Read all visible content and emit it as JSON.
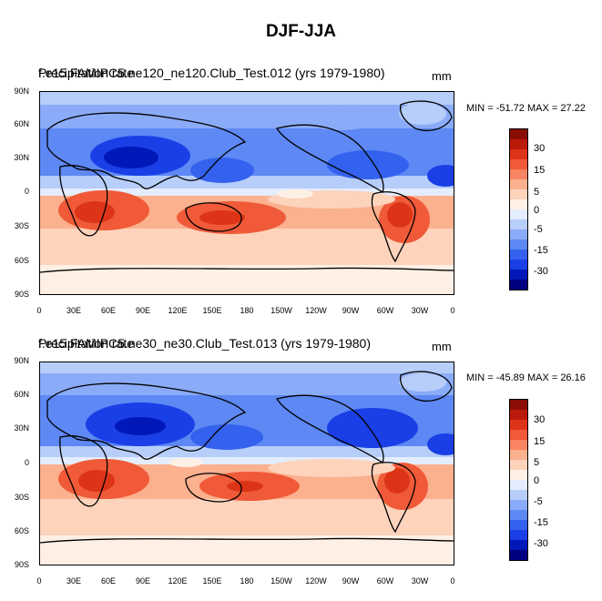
{
  "title": "DJF-JJA",
  "colors": {
    "scale": [
      "#000080",
      "#0018b8",
      "#1a3fe6",
      "#3462ee",
      "#5e88f4",
      "#8aabf7",
      "#b7cdfa",
      "#e4edfd",
      "#fff0e6",
      "#fdd3bc",
      "#fbb08e",
      "#f88462",
      "#f05a38",
      "#dd3418",
      "#bb1a0a",
      "#8a0d05"
    ]
  },
  "panels": [
    {
      "label_a": "Precipitation rate",
      "label_b": "f.e15.FAMIPC5.ne120_ne120.Club_Test.012 (yrs 1979-1980)",
      "units": "mm",
      "minmax": "MIN = -51.72 MAX =  27.22"
    },
    {
      "label_a": "Precipitation rate",
      "label_b": "f.e15.FAMIPC5.ne30_ne30.Club_Test.013 (yrs 1979-1980)",
      "units": "mm",
      "minmax": "MIN = -45.89 MAX =  26.16"
    }
  ],
  "axes": {
    "lat_labels": [
      "90N",
      "60N",
      "30N",
      "0",
      "30S",
      "60S",
      "90S"
    ],
    "lon_labels": [
      "0",
      "30E",
      "60E",
      "90E",
      "120E",
      "150E",
      "180",
      "150W",
      "120W",
      "90W",
      "60W",
      "30W",
      "0"
    ]
  },
  "colorbar": {
    "labels": [
      "30",
      "15",
      "5",
      "0",
      "-5",
      "-15",
      "-30"
    ]
  }
}
